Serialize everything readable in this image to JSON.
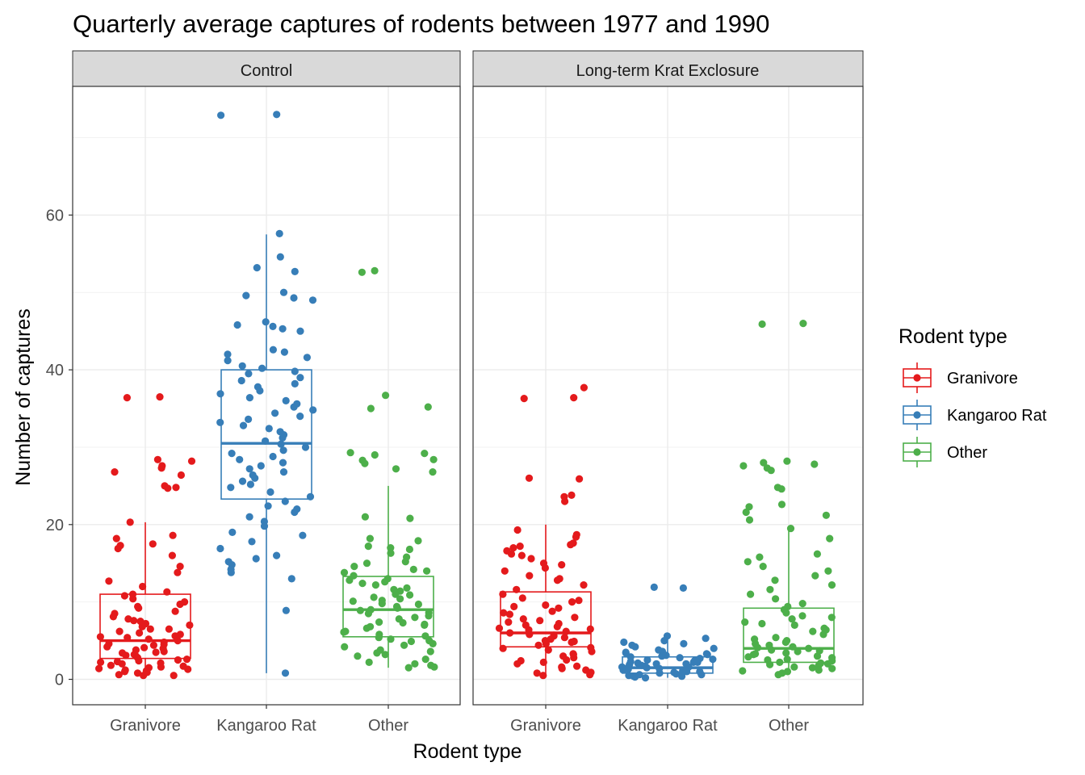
{
  "chart_data": {
    "type": "box+jitter",
    "title": "Quarterly average captures of rodents between 1977 and 1990",
    "xlabel": "Rodent type",
    "ylabel": "Number of captures",
    "categories": [
      "Granivore",
      "Kangaroo Rat",
      "Other"
    ],
    "facets": [
      "Control",
      "Long-term Krat Exclosure"
    ],
    "yticks": [
      0,
      20,
      40,
      60
    ],
    "ylim": [
      -3.5,
      77.5
    ],
    "grid": true,
    "legend": {
      "title": "Rodent type",
      "position": "right",
      "entries": [
        "Granivore",
        "Kangaroo Rat",
        "Other"
      ]
    },
    "colors": {
      "Granivore": "#E41A1C",
      "Kangaroo Rat": "#377EB8",
      "Other": "#4DAF4A"
    },
    "panels": [
      {
        "facet": "Control",
        "boxes": [
          {
            "category": "Granivore",
            "whisker_low": 0.5,
            "q1": 2.7,
            "median": 5.0,
            "q3": 11.0,
            "whisker_high": 20.3,
            "points": [
              36.5,
              36.4,
              28.4,
              28.2,
              27.6,
              27.3,
              26.8,
              26.4,
              25.0,
              24.8,
              24.7,
              20.3,
              18.6,
              18.2,
              17.5,
              17.3,
              16.9,
              16.0,
              14.6,
              13.8,
              12.7,
              12.0,
              11.3,
              11.0,
              10.8,
              10.4,
              10.0,
              9.7,
              9.4,
              9.2,
              8.8,
              8.5,
              8.1,
              7.8,
              7.6,
              7.2,
              7.0,
              6.8,
              6.5,
              6.2,
              6.0,
              5.8,
              5.6,
              5.4,
              5.2,
              5.0,
              4.8,
              4.6,
              4.4,
              4.2,
              4.0,
              3.8,
              3.6,
              3.4,
              3.2,
              3.0,
              2.8,
              2.6,
              2.4,
              2.2,
              2.0,
              1.8,
              1.6,
              1.4,
              1.2,
              1.0,
              0.8,
              0.6,
              0.5,
              0.5,
              1.5,
              2.5,
              3.5,
              4.5,
              5.5,
              6.5,
              7.5,
              1.1,
              2.1,
              3.1,
              4.1,
              1.3,
              2.3,
              0.9,
              1.7
            ]
          },
          {
            "category": "Kangaroo Rat",
            "whisker_low": 0.8,
            "q1": 23.3,
            "median": 30.5,
            "q3": 40.0,
            "whisker_high": 57.5,
            "points": [
              73.0,
              72.9,
              57.6,
              54.6,
              53.2,
              52.7,
              50.0,
              49.6,
              49.3,
              49.0,
              46.2,
              45.8,
              45.6,
              45.3,
              45.0,
              42.6,
              42.3,
              42.0,
              41.6,
              41.2,
              40.5,
              40.2,
              39.8,
              39.5,
              39.0,
              38.6,
              38.2,
              37.8,
              37.3,
              36.9,
              36.4,
              36.0,
              35.6,
              35.2,
              34.8,
              34.4,
              34.0,
              33.6,
              33.2,
              32.8,
              32.4,
              32.0,
              31.6,
              31.2,
              30.8,
              30.4,
              30.0,
              29.6,
              29.2,
              28.8,
              28.4,
              28.0,
              27.6,
              27.2,
              26.8,
              26.4,
              26.0,
              25.6,
              25.2,
              24.8,
              24.2,
              23.6,
              23.0,
              22.4,
              22.0,
              21.6,
              21.0,
              20.4,
              19.8,
              19.0,
              18.6,
              17.8,
              16.9,
              16.0,
              15.6,
              15.2,
              14.8,
              14.2,
              13.8,
              13.0,
              8.9,
              0.8
            ]
          },
          {
            "category": "Other",
            "whisker_low": 1.5,
            "q1": 5.5,
            "median": 9.0,
            "q3": 13.3,
            "whisker_high": 25.0,
            "points": [
              52.8,
              52.6,
              36.7,
              35.2,
              35.0,
              29.3,
              29.2,
              29.0,
              28.4,
              28.3,
              27.9,
              27.2,
              26.8,
              21.0,
              20.8,
              18.2,
              17.9,
              17.2,
              17.0,
              16.8,
              16.3,
              15.8,
              15.2,
              15.0,
              14.6,
              14.2,
              13.8,
              13.4,
              13.0,
              12.6,
              12.2,
              11.8,
              11.4,
              11.0,
              10.6,
              10.2,
              9.8,
              9.4,
              9.0,
              8.6,
              8.2,
              7.8,
              7.4,
              7.0,
              6.6,
              6.2,
              5.8,
              5.4,
              5.0,
              4.6,
              4.2,
              3.8,
              3.4,
              3.0,
              2.6,
              2.2,
              1.8,
              1.5,
              1.6,
              2.0,
              3.2,
              4.4,
              5.6,
              6.8,
              8.0,
              9.2,
              10.4,
              11.6,
              12.8,
              14.0,
              4.9,
              6.1,
              7.3,
              8.5,
              9.7,
              10.9,
              3.6,
              5.2,
              7.1,
              8.9,
              10.1,
              12.4
            ]
          }
        ]
      },
      {
        "facet": "Long-term Krat Exclosure",
        "boxes": [
          {
            "category": "Granivore",
            "whisker_low": 0.5,
            "q1": 4.2,
            "median": 6.0,
            "q3": 11.3,
            "whisker_high": 20.0,
            "points": [
              37.7,
              36.4,
              36.3,
              26.0,
              25.9,
              23.8,
              23.6,
              23.0,
              19.3,
              18.7,
              18.4,
              17.4,
              17.2,
              17.0,
              16.6,
              16.0,
              15.6,
              15.0,
              14.4,
              14.0,
              13.4,
              12.8,
              12.2,
              11.6,
              11.0,
              10.5,
              10.0,
              9.6,
              9.2,
              8.8,
              8.4,
              8.0,
              7.6,
              7.2,
              6.8,
              6.4,
              6.0,
              5.6,
              5.2,
              4.8,
              4.4,
              4.0,
              3.6,
              3.2,
              2.8,
              2.4,
              2.0,
              1.6,
              1.2,
              0.8,
              0.5,
              0.6,
              1.4,
              2.2,
              3.0,
              3.8,
              4.6,
              5.4,
              6.2,
              7.0,
              7.8,
              8.6,
              9.4,
              10.2,
              5.0,
              5.8,
              6.6,
              7.4,
              4.1,
              4.9,
              5.7,
              6.5,
              3.3,
              2.5,
              1.7,
              0.9,
              13.0,
              14.8,
              16.2,
              17.6
            ]
          },
          {
            "category": "Kangaroo Rat",
            "whisker_low": 0.2,
            "q1": 0.8,
            "median": 1.5,
            "q3": 2.9,
            "whisker_high": 5.5,
            "points": [
              11.9,
              11.8,
              5.6,
              5.3,
              5.0,
              4.8,
              4.6,
              4.4,
              4.2,
              4.0,
              3.8,
              3.6,
              3.4,
              3.2,
              3.0,
              2.8,
              2.6,
              2.4,
              2.2,
              2.0,
              1.8,
              1.6,
              1.4,
              1.2,
              1.0,
              0.8,
              0.6,
              0.4,
              0.2,
              0.3,
              0.5,
              0.7,
              0.9,
              1.1,
              1.3,
              1.5,
              1.7,
              1.9,
              2.1,
              2.3,
              2.5,
              2.7,
              2.9,
              3.1,
              3.3,
              3.5,
              1.0,
              1.2,
              1.4,
              1.6,
              0.4,
              0.6,
              2.0,
              2.2
            ]
          },
          {
            "category": "Other",
            "whisker_low": 0.6,
            "q1": 2.2,
            "median": 4.0,
            "q3": 9.2,
            "whisker_high": 19.2,
            "points": [
              46.0,
              45.9,
              28.2,
              28.0,
              27.8,
              27.6,
              27.3,
              27.0,
              24.8,
              24.6,
              22.6,
              22.3,
              21.6,
              21.2,
              20.6,
              19.5,
              18.2,
              16.2,
              15.8,
              15.2,
              14.6,
              14.0,
              13.4,
              12.8,
              12.2,
              11.6,
              11.0,
              10.4,
              9.8,
              9.4,
              9.0,
              8.6,
              8.2,
              7.8,
              7.4,
              7.0,
              6.6,
              6.2,
              5.8,
              5.4,
              5.0,
              4.6,
              4.2,
              3.8,
              3.4,
              3.0,
              2.6,
              2.2,
              1.8,
              1.4,
              1.0,
              0.6,
              0.8,
              1.2,
              1.6,
              2.0,
              2.4,
              2.8,
              3.2,
              3.6,
              4.0,
              4.4,
              4.8,
              5.2,
              2.1,
              2.5,
              2.9,
              3.3,
              3.7,
              4.1,
              1.1,
              1.5,
              1.9,
              6.4,
              7.2,
              8.0
            ]
          }
        ]
      }
    ]
  }
}
